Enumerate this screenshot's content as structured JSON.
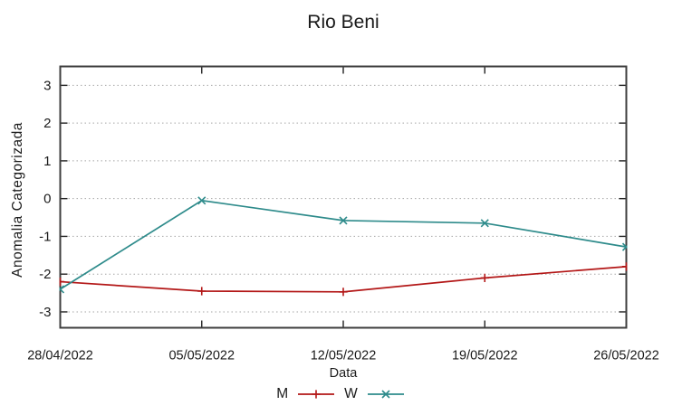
{
  "title": "Rio Beni",
  "chart_data": {
    "type": "line",
    "title": "Rio Beni",
    "xlabel": "Data",
    "ylabel": "Anomalia Categorizada",
    "categories": [
      "28/04/2022",
      "05/05/2022",
      "12/05/2022",
      "19/05/2022",
      "26/05/2022"
    ],
    "series": [
      {
        "name": "M",
        "color": "#b31717",
        "marker": "plus",
        "values": [
          -2.2,
          -2.45,
          -2.47,
          -2.1,
          -1.8
        ]
      },
      {
        "name": "W",
        "color": "#2e8b8b",
        "marker": "cross",
        "values": [
          -2.4,
          -0.05,
          -0.58,
          -0.65,
          -1.28
        ]
      }
    ],
    "yticks": [
      -3,
      -2,
      -1,
      0,
      1,
      2,
      3
    ],
    "ylim": [
      -3.42,
      3.5
    ],
    "grid": "horizontal-dotted",
    "grid_color": "#a6a6a6",
    "border_color": "#3e3e3e",
    "text_color": "#1a1a1a",
    "legend_position": "bottom-center"
  }
}
